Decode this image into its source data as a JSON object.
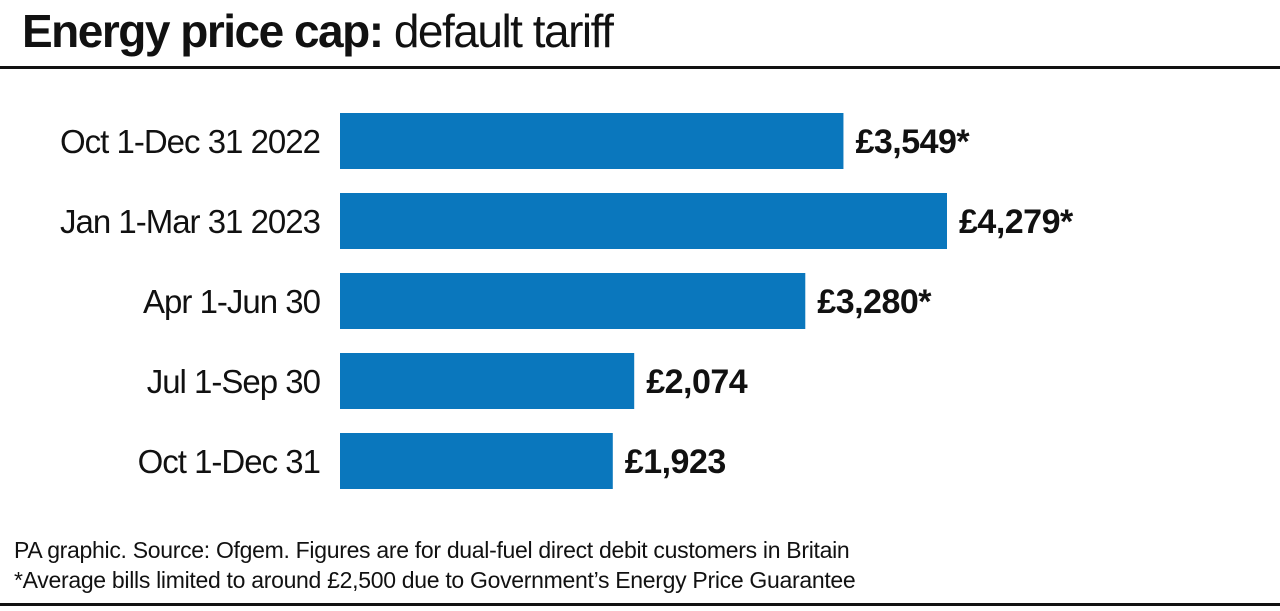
{
  "title": {
    "bold": "Energy price cap:",
    "regular": "default tariff"
  },
  "chart_data": {
    "type": "bar",
    "orientation": "horizontal",
    "title": "Energy price cap: default tariff",
    "categories": [
      "Oct 1-Dec 31 2022",
      "Jan 1-Mar 31 2023",
      "Apr 1-Jun 30",
      "Jul 1-Sep 30",
      "Oct 1-Dec 31"
    ],
    "values": [
      3549,
      4279,
      3280,
      2074,
      1923
    ],
    "data_labels": [
      "£3,549*",
      "£4,279*",
      "£3,280*",
      "£2,074",
      "£1,923"
    ],
    "xlim": [
      0,
      4279
    ],
    "grid": false,
    "bar_color": "#0a77bd"
  },
  "footnotes": [
    "PA graphic. Source: Ofgem. Figures are for dual-fuel direct debit customers in Britain",
    "*Average bills limited to around £2,500 due to Government’s Energy Price Guarantee"
  ]
}
